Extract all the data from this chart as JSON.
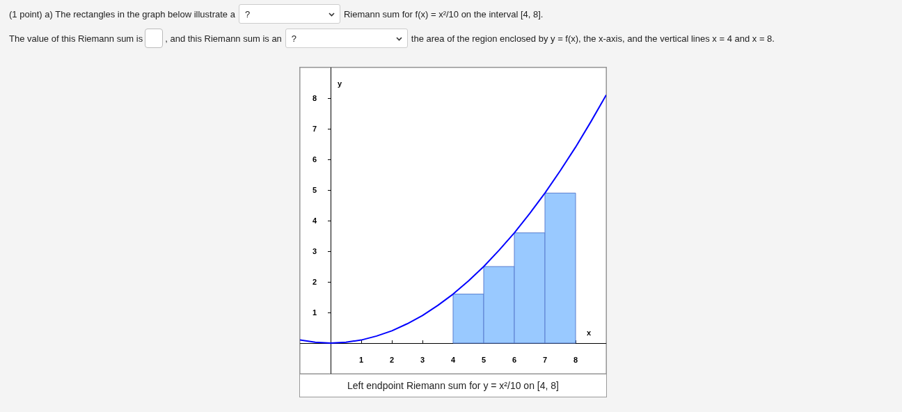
{
  "chart_data": {
    "type": "histogram",
    "xlabel": "x",
    "ylabel": "y",
    "annotations": [
      "(1 point) a) The rectangles in the graph below illustrate a",
      "?",
      "Riemann sum for f(x) = x²/10 on the interval [4, 8].",
      "The value of this Riemann sum is",
      ", and this Riemann sum is an",
      "?",
      "the area of the region enclosed by y = f(x), the x-axis, and the vertical lines x = 4 and x = 8.",
      "Left endpoint Riemann sum for y = x²/10 on [4, 8]"
    ],
    "xlim": [
      -1,
      9
    ],
    "ylim": [
      -1,
      9
    ],
    "xticks": [
      1,
      2,
      3,
      4,
      5,
      6,
      7,
      8
    ],
    "yticks": [
      1,
      2,
      3,
      4,
      5,
      6,
      7,
      8
    ],
    "grid": false,
    "series": [
      {
        "type": "histogram",
        "color": "#99c9ff",
        "bins": [
          4,
          5,
          6,
          7,
          8
        ],
        "values": [
          1.6,
          2.5,
          3.6,
          4.9
        ]
      },
      {
        "type": "line",
        "color": "#0000ff",
        "marker": "none",
        "line_style": "solid",
        "x": [
          -1,
          -0.5,
          0,
          0.5,
          1,
          1.5,
          2,
          2.5,
          3,
          3.5,
          4,
          4.5,
          5,
          5.5,
          6,
          6.5,
          7,
          7.5,
          8,
          8.5,
          9
        ],
        "values": [
          0.1,
          0.03,
          0,
          0.03,
          0.1,
          0.23,
          0.4,
          0.63,
          0.9,
          1.23,
          1.6,
          2.03,
          2.5,
          3.03,
          3.6,
          4.23,
          4.9,
          5.63,
          6.4,
          7.23,
          8.1
        ]
      }
    ]
  }
}
